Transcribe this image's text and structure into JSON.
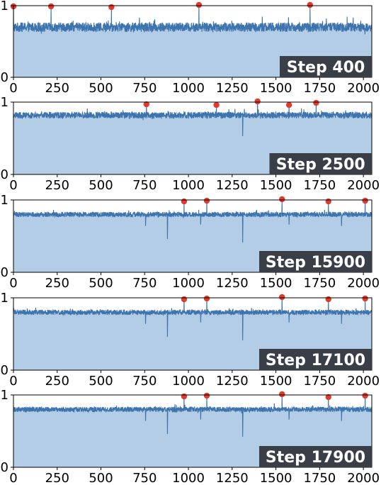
{
  "chart_data": [
    {
      "type": "area",
      "step_label": "Step 400",
      "xlim": [
        0,
        2048
      ],
      "ylim": [
        0,
        1
      ],
      "xticks": [
        0,
        250,
        500,
        750,
        1000,
        1250,
        1500,
        1750,
        2000
      ],
      "yticks": [
        0,
        1
      ],
      "baseline": 0.7,
      "noise": 0.065,
      "dips": [],
      "highlight_points": [
        {
          "x": 0,
          "y": 0.99
        },
        {
          "x": 215,
          "y": 0.99
        },
        {
          "x": 560,
          "y": 0.98
        },
        {
          "x": 1060,
          "y": 1.01
        },
        {
          "x": 1695,
          "y": 1.01
        }
      ]
    },
    {
      "type": "area",
      "step_label": "Step 2500",
      "xlim": [
        0,
        2048
      ],
      "ylim": [
        0,
        1
      ],
      "xticks": [
        0,
        250,
        500,
        750,
        1000,
        1250,
        1500,
        1750,
        2000
      ],
      "yticks": [
        0,
        1
      ],
      "baseline": 0.82,
      "noise": 0.045,
      "dips": [
        {
          "x": 1310,
          "y": 0.53
        }
      ],
      "highlight_points": [
        {
          "x": 760,
          "y": 0.97
        },
        {
          "x": 1160,
          "y": 0.96
        },
        {
          "x": 1395,
          "y": 1.01
        },
        {
          "x": 1575,
          "y": 0.96
        },
        {
          "x": 1730,
          "y": 0.99
        }
      ]
    },
    {
      "type": "area",
      "step_label": "Step 15900",
      "xlim": [
        0,
        2048
      ],
      "ylim": [
        0,
        1
      ],
      "xticks": [
        0,
        250,
        500,
        750,
        1000,
        1250,
        1500,
        1750,
        2000
      ],
      "yticks": [
        0,
        1
      ],
      "baseline": 0.8,
      "noise": 0.035,
      "dips": [
        {
          "x": 755,
          "y": 0.64
        },
        {
          "x": 880,
          "y": 0.46
        },
        {
          "x": 1070,
          "y": 0.66
        },
        {
          "x": 1310,
          "y": 0.41
        },
        {
          "x": 1575,
          "y": 0.66
        },
        {
          "x": 1875,
          "y": 0.64
        }
      ],
      "highlight_points": [
        {
          "x": 975,
          "y": 0.98
        },
        {
          "x": 1105,
          "y": 0.99
        },
        {
          "x": 1535,
          "y": 1.01
        },
        {
          "x": 1800,
          "y": 0.98
        },
        {
          "x": 2010,
          "y": 0.99
        }
      ]
    },
    {
      "type": "area",
      "step_label": "Step 17100",
      "xlim": [
        0,
        2048
      ],
      "ylim": [
        0,
        1
      ],
      "xticks": [
        0,
        250,
        500,
        750,
        1000,
        1250,
        1500,
        1750,
        2000
      ],
      "yticks": [
        0,
        1
      ],
      "baseline": 0.8,
      "noise": 0.035,
      "dips": [
        {
          "x": 755,
          "y": 0.64
        },
        {
          "x": 880,
          "y": 0.46
        },
        {
          "x": 1070,
          "y": 0.66
        },
        {
          "x": 1310,
          "y": 0.41
        },
        {
          "x": 1575,
          "y": 0.66
        },
        {
          "x": 1875,
          "y": 0.64
        }
      ],
      "highlight_points": [
        {
          "x": 975,
          "y": 0.98
        },
        {
          "x": 1105,
          "y": 0.99
        },
        {
          "x": 1535,
          "y": 1.01
        },
        {
          "x": 1800,
          "y": 0.98
        },
        {
          "x": 2010,
          "y": 0.99
        }
      ]
    },
    {
      "type": "area",
      "step_label": "Step 17900",
      "xlim": [
        0,
        2048
      ],
      "ylim": [
        0,
        1
      ],
      "xticks": [
        0,
        250,
        500,
        750,
        1000,
        1250,
        1500,
        1750,
        2000
      ],
      "yticks": [
        0,
        1
      ],
      "baseline": 0.8,
      "noise": 0.035,
      "dips": [
        {
          "x": 755,
          "y": 0.64
        },
        {
          "x": 880,
          "y": 0.46
        },
        {
          "x": 1070,
          "y": 0.66
        },
        {
          "x": 1310,
          "y": 0.42
        },
        {
          "x": 1575,
          "y": 0.66
        },
        {
          "x": 1875,
          "y": 0.64
        }
      ],
      "highlight_points": [
        {
          "x": 975,
          "y": 0.98
        },
        {
          "x": 1105,
          "y": 0.99
        },
        {
          "x": 1535,
          "y": 1.01
        },
        {
          "x": 1800,
          "y": 0.97
        },
        {
          "x": 2010,
          "y": 0.99
        }
      ]
    }
  ],
  "colors": {
    "line": "#3d74ae",
    "fill": "#b4cde6",
    "highlight": "#e03a2b",
    "label_bg": "#3a3f47",
    "label_text": "#ffffff",
    "axis": "#000000"
  }
}
